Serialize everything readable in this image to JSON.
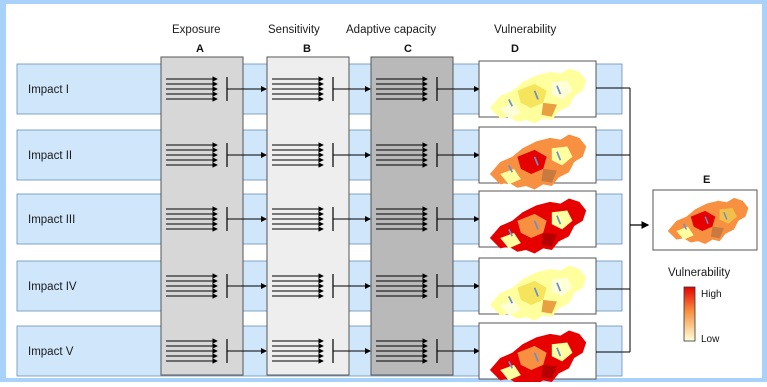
{
  "columns": [
    {
      "name": "Exposure",
      "letter": "A"
    },
    {
      "name": "Sensitivity",
      "letter": "B"
    },
    {
      "name": "Adaptive capacity",
      "letter": "C"
    },
    {
      "name": "Vulnerability",
      "letter": "D"
    }
  ],
  "impacts": [
    "Impact I",
    "Impact II",
    "Impact III",
    "Impact IV",
    "Impact V"
  ],
  "result": {
    "letter": "E"
  },
  "legend": {
    "title": "Vulnerability",
    "high": "High",
    "low": "Low"
  },
  "colors": {
    "frame": "#a9d2fa",
    "row": "#cfe6fb",
    "column_a": "#d7d7d7",
    "column_b": "#eeeeee",
    "column_c": "#b9b9b9",
    "low": "#ffffd8",
    "high": "#e60000"
  },
  "maps": [
    {
      "level": "low"
    },
    {
      "level": "medium-high"
    },
    {
      "level": "high"
    },
    {
      "level": "low"
    },
    {
      "level": "high"
    }
  ]
}
